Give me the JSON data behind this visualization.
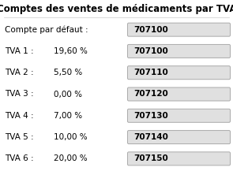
{
  "title": "Comptes des ventes de médicaments par TVA",
  "rows": [
    {
      "label": "Compte par défaut :",
      "pct": "",
      "value": "707100"
    },
    {
      "label": "TVA 1 :",
      "pct": "19,60 %",
      "value": "707100"
    },
    {
      "label": "TVA 2 :",
      "pct": "5,50 %",
      "value": "707110"
    },
    {
      "label": "TVA 3 :",
      "pct": "0,00 %",
      "value": "707120"
    },
    {
      "label": "TVA 4 :",
      "pct": "7,00 %",
      "value": "707130"
    },
    {
      "label": "TVA 5 :",
      "pct": "10,00 %",
      "value": "707140"
    },
    {
      "label": "TVA 6 :",
      "pct": "20,00 %",
      "value": "707150"
    }
  ],
  "bg_color": "#ffffff",
  "title_color": "#000000",
  "label_color": "#000000",
  "value_color": "#000000",
  "box_bg": "#e0e0e0",
  "box_border": "#aaaaaa",
  "title_fontsize": 8.5,
  "label_fontsize": 7.5,
  "value_fontsize": 7.5,
  "fig_width": 2.95,
  "fig_height": 2.17,
  "dpi": 100
}
